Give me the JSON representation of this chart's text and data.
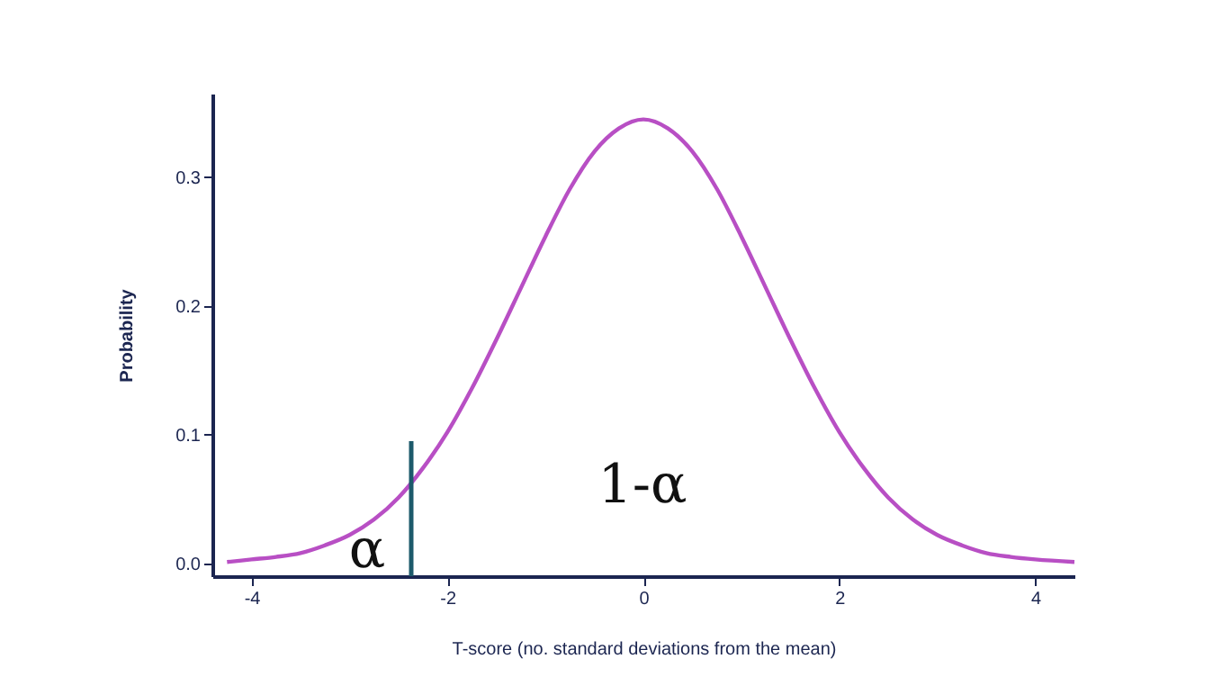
{
  "chart_data": {
    "type": "line",
    "xlabel": "T-score (no. standard deviations from the mean)",
    "ylabel": "Probability",
    "xlim": [
      -4.4,
      4.4
    ],
    "ylim": [
      -0.01,
      0.365
    ],
    "xticks": [
      -4,
      -2,
      0,
      2,
      4
    ],
    "yticks": [
      {
        "value": 0,
        "label": "0.0"
      },
      {
        "value": 0.1,
        "label": "0.1"
      },
      {
        "value": 0.2,
        "label": "0.2"
      },
      {
        "value": 0.3,
        "label": "0.3"
      }
    ],
    "grid": false,
    "marker": "none",
    "line_style": "solid",
    "series": [
      {
        "color": "#b84fc4",
        "x": [
          -4.25,
          -4,
          -3.75,
          -3.5,
          -3.25,
          -3,
          -2.75,
          -2.5,
          -2.25,
          -2,
          -1.75,
          -1.5,
          -1.25,
          -1,
          -0.75,
          -0.5,
          -0.25,
          0,
          0.25,
          0.5,
          0.75,
          1,
          1.25,
          1.5,
          1.75,
          2,
          2.25,
          2.5,
          2.75,
          3,
          3.25,
          3.5,
          3.75,
          4,
          4.4
        ],
        "values": [
          0.001,
          0.003,
          0.005,
          0.008,
          0.014,
          0.022,
          0.034,
          0.051,
          0.074,
          0.102,
          0.136,
          0.174,
          0.214,
          0.254,
          0.291,
          0.32,
          0.338,
          0.345,
          0.338,
          0.32,
          0.291,
          0.254,
          0.214,
          0.174,
          0.136,
          0.102,
          0.074,
          0.051,
          0.034,
          0.022,
          0.014,
          0.008,
          0.005,
          0.003,
          0.001
        ]
      },
      {
        "color": "#1d5a6b",
        "x": [
          -2.37,
          -2.37
        ],
        "values": [
          -0.01,
          0.095
        ]
      }
    ],
    "annotations": [
      "α",
      "1-α"
    ]
  }
}
